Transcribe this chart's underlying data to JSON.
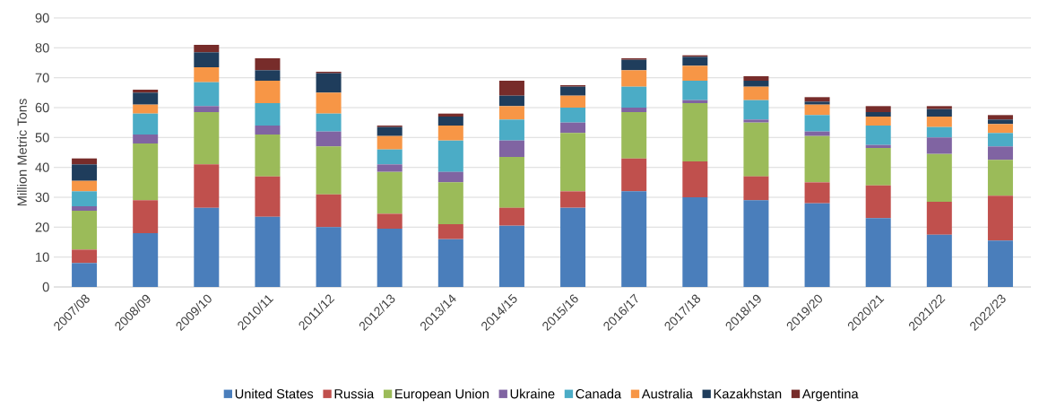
{
  "chart_data": {
    "type": "bar",
    "stacked": true,
    "ylabel": "Million Metric Tons",
    "categories": [
      "2007/08",
      "2008/09",
      "2009/10",
      "2010/11",
      "2011/12",
      "2012/13",
      "2013/14",
      "2014/15",
      "2015/16",
      "2016/17",
      "2017/18",
      "2018/19",
      "2019/20",
      "2020/21",
      "2021/22",
      "2022/23"
    ],
    "series": [
      {
        "name": "United States",
        "color": "#4a7ebb",
        "values": [
          8,
          18,
          26.5,
          23.5,
          20,
          19.5,
          16,
          20.5,
          26.5,
          32,
          30,
          29,
          28,
          23,
          17.5,
          15.5
        ]
      },
      {
        "name": "Russia",
        "color": "#c0504d",
        "values": [
          4.5,
          11,
          14.5,
          13.5,
          11,
          5,
          5,
          6,
          5.5,
          11,
          12,
          8,
          7,
          11,
          11,
          15
        ]
      },
      {
        "name": "European Union",
        "color": "#9bbb59",
        "values": [
          13,
          19,
          17.5,
          14,
          16,
          14,
          14,
          17,
          19.5,
          15.5,
          19.5,
          18,
          15.5,
          12.5,
          16,
          12
        ]
      },
      {
        "name": "Ukraine",
        "color": "#8064a2",
        "values": [
          1.5,
          3,
          2,
          3,
          5,
          2.5,
          3.5,
          5.5,
          3.5,
          1.5,
          1,
          1,
          1.5,
          1,
          5.5,
          4.5
        ]
      },
      {
        "name": "Canada",
        "color": "#4bacc6",
        "values": [
          5,
          7,
          8,
          7.5,
          6,
          5,
          10.5,
          7,
          5,
          7,
          6.5,
          6.5,
          5.5,
          6.5,
          3.5,
          4.5
        ]
      },
      {
        "name": "Australia",
        "color": "#f79646",
        "values": [
          3.5,
          3,
          5,
          7.5,
          7,
          4.5,
          5,
          4.5,
          4,
          5.5,
          5,
          4.5,
          3.5,
          3,
          3.5,
          3
        ]
      },
      {
        "name": "Kazakhstan",
        "color": "#1f3d5c",
        "values": [
          5.5,
          4,
          5,
          3.5,
          6.5,
          3,
          3,
          3.5,
          3,
          3.5,
          3,
          2,
          1,
          1.5,
          2.5,
          1.5
        ]
      },
      {
        "name": "Argentina",
        "color": "#772c2a",
        "values": [
          2,
          1,
          2.5,
          4,
          0.5,
          0.5,
          1,
          5,
          0.5,
          0.5,
          0.5,
          1.5,
          1.5,
          2,
          1,
          1.5
        ]
      }
    ],
    "ylim": [
      0,
      90
    ],
    "yticks": [
      0,
      10,
      20,
      30,
      40,
      50,
      60,
      70,
      80,
      90
    ],
    "grid": "y",
    "legend": "bottom"
  }
}
